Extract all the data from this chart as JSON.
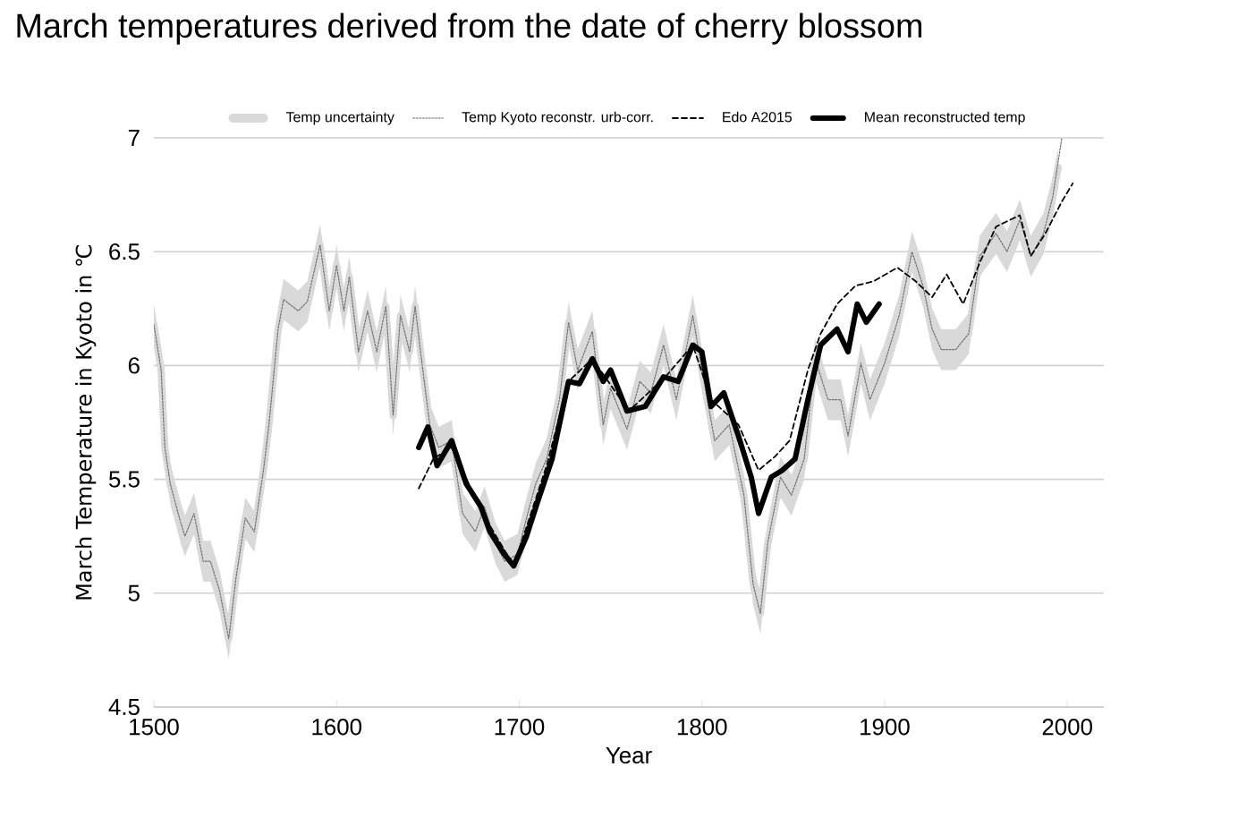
{
  "chart_data": {
    "type": "line",
    "title": "March temperatures derived from the date of cherry blossom",
    "xlabel": "Year",
    "ylabel": "March Temperature in Kyoto in ℃",
    "xlim": [
      1500,
      2020
    ],
    "xticks": [
      1500,
      1600,
      1700,
      1800,
      1900,
      2000
    ],
    "ylim": [
      4.5,
      7
    ],
    "yticks": [
      4.5,
      5,
      5.5,
      6,
      6.5,
      7
    ],
    "grid": "y",
    "legend": "top",
    "marker": "none",
    "series": [
      {
        "name": "Temp uncertainty",
        "color": "#d9d9d9",
        "line_style": "solid",
        "values": [
          6.18,
          5.98,
          5.64,
          5.48,
          5.33,
          5.25,
          5.35,
          5.14,
          5.14,
          5.01,
          4.8,
          5.07,
          5.33,
          5.27,
          5.54,
          5.74,
          6.16,
          6.29,
          6.24,
          6.28,
          6.53,
          6.24,
          6.44,
          6.24,
          6.39,
          6.06,
          6.24,
          6.06,
          6.26,
          5.78,
          6.22,
          6.06,
          6.26,
          6.06,
          5.74,
          5.64,
          5.67,
          5.35,
          5.27,
          5.38,
          5.22,
          5.14,
          5.17,
          5.33,
          5.48,
          5.59,
          5.85,
          6.19,
          5.98,
          6.15,
          5.74,
          5.9,
          5.72,
          5.93,
          5.88,
          6.09,
          5.85,
          6.22,
          5.98,
          5.67,
          5.74,
          5.43,
          5.04,
          4.91,
          5.22,
          5.51,
          5.43,
          5.59,
          6.03,
          5.85,
          5.85,
          5.69,
          6.01,
          5.85,
          6.01,
          6.22,
          6.5,
          6.35,
          6.16,
          6.07,
          6.07,
          6.14,
          6.48,
          6.58,
          6.5,
          6.64,
          6.48,
          6.58,
          6.74,
          6.87
        ],
        "x": [
          1500,
          1504,
          1506,
          1509,
          1514,
          1517,
          1522,
          1527,
          1531,
          1536,
          1541,
          1545,
          1550,
          1555,
          1560,
          1563,
          1568,
          1571,
          1579,
          1584,
          1591,
          1596,
          1600,
          1604,
          1607,
          1612,
          1617,
          1622,
          1627,
          1631,
          1635,
          1640,
          1643,
          1646,
          1651,
          1656,
          1663,
          1669,
          1676,
          1681,
          1687,
          1692,
          1699,
          1704,
          1709,
          1715,
          1722,
          1727,
          1732,
          1740,
          1746,
          1750,
          1759,
          1766,
          1772,
          1779,
          1786,
          1795,
          1800,
          1807,
          1815,
          1823,
          1828,
          1832,
          1836,
          1843,
          1849,
          1856,
          1862,
          1869,
          1876,
          1880,
          1887,
          1892,
          1900,
          1908,
          1915,
          1921,
          1926,
          1931,
          1939,
          1946,
          1952,
          1961,
          1967,
          1974,
          1980,
          1987,
          1992,
          1995
        ],
        "upper": [
          6.27,
          6.07,
          5.73,
          5.57,
          5.42,
          5.34,
          5.44,
          5.23,
          5.23,
          5.1,
          4.89,
          5.16,
          5.42,
          5.36,
          5.63,
          5.83,
          6.25,
          6.38,
          6.33,
          6.37,
          6.62,
          6.33,
          6.53,
          6.33,
          6.48,
          6.15,
          6.33,
          6.15,
          6.35,
          5.87,
          6.31,
          6.15,
          6.35,
          6.15,
          5.83,
          5.73,
          5.76,
          5.44,
          5.36,
          5.47,
          5.31,
          5.23,
          5.26,
          5.42,
          5.57,
          5.68,
          5.94,
          6.28,
          6.07,
          6.24,
          5.83,
          5.99,
          5.81,
          6.02,
          5.97,
          6.18,
          5.94,
          6.31,
          6.07,
          5.76,
          5.83,
          5.52,
          5.13,
          5.0,
          5.31,
          5.6,
          5.52,
          5.68,
          6.12,
          5.94,
          5.94,
          5.78,
          6.1,
          5.94,
          6.1,
          6.31,
          6.59,
          6.44,
          6.25,
          6.16,
          6.16,
          6.23,
          6.57,
          6.67,
          6.59,
          6.73,
          6.57,
          6.67,
          6.83,
          6.96
        ],
        "lower": [
          6.09,
          5.89,
          5.55,
          5.39,
          5.24,
          5.16,
          5.26,
          5.05,
          5.05,
          4.92,
          4.71,
          4.98,
          5.24,
          5.18,
          5.45,
          5.65,
          6.07,
          6.2,
          6.15,
          6.19,
          6.44,
          6.15,
          6.35,
          6.15,
          6.3,
          5.97,
          6.15,
          5.97,
          6.17,
          5.69,
          6.13,
          5.97,
          6.17,
          5.97,
          5.65,
          5.55,
          5.58,
          5.26,
          5.18,
          5.29,
          5.13,
          5.05,
          5.08,
          5.24,
          5.39,
          5.5,
          5.76,
          6.1,
          5.89,
          6.06,
          5.65,
          5.81,
          5.63,
          5.84,
          5.79,
          6.0,
          5.76,
          6.13,
          5.89,
          5.58,
          5.65,
          5.34,
          4.95,
          4.82,
          5.13,
          5.42,
          5.34,
          5.5,
          5.94,
          5.76,
          5.76,
          5.6,
          5.92,
          5.76,
          5.92,
          6.13,
          6.41,
          6.26,
          6.07,
          5.98,
          5.98,
          6.05,
          6.39,
          6.49,
          6.41,
          6.55,
          6.39,
          6.49,
          6.65,
          6.78
        ]
      },
      {
        "name": "Temp Kyoto reconstr. urb-corr.",
        "color": "#707070",
        "line_style": "dotted",
        "x": [
          1500,
          1504,
          1506,
          1509,
          1514,
          1517,
          1522,
          1527,
          1531,
          1536,
          1541,
          1545,
          1550,
          1555,
          1560,
          1563,
          1568,
          1571,
          1579,
          1584,
          1591,
          1596,
          1600,
          1604,
          1607,
          1612,
          1617,
          1622,
          1627,
          1631,
          1635,
          1640,
          1643,
          1646,
          1651,
          1656,
          1663,
          1669,
          1676,
          1681,
          1687,
          1692,
          1699,
          1704,
          1709,
          1715,
          1722,
          1727,
          1732,
          1740,
          1746,
          1750,
          1759,
          1766,
          1772,
          1779,
          1786,
          1795,
          1800,
          1807,
          1815,
          1823,
          1828,
          1832,
          1836,
          1843,
          1849,
          1856,
          1862,
          1869,
          1876,
          1880,
          1887,
          1892,
          1900,
          1908,
          1915,
          1921,
          1926,
          1931,
          1939,
          1946,
          1952,
          1961,
          1967,
          1974,
          1980,
          1987,
          1992,
          1997
        ],
        "values": [
          6.18,
          5.98,
          5.64,
          5.48,
          5.33,
          5.25,
          5.35,
          5.14,
          5.14,
          5.01,
          4.8,
          5.07,
          5.33,
          5.27,
          5.54,
          5.74,
          6.16,
          6.29,
          6.24,
          6.28,
          6.53,
          6.24,
          6.44,
          6.24,
          6.39,
          6.06,
          6.24,
          6.06,
          6.26,
          5.78,
          6.22,
          6.06,
          6.26,
          6.06,
          5.74,
          5.64,
          5.67,
          5.35,
          5.27,
          5.38,
          5.22,
          5.14,
          5.17,
          5.33,
          5.48,
          5.59,
          5.85,
          6.19,
          5.98,
          6.15,
          5.74,
          5.9,
          5.72,
          5.93,
          5.88,
          6.09,
          5.85,
          6.22,
          5.98,
          5.67,
          5.74,
          5.43,
          5.04,
          4.91,
          5.22,
          5.51,
          5.43,
          5.59,
          6.03,
          5.85,
          5.85,
          5.69,
          6.01,
          5.85,
          6.01,
          6.22,
          6.5,
          6.35,
          6.16,
          6.07,
          6.07,
          6.14,
          6.48,
          6.58,
          6.5,
          6.64,
          6.48,
          6.58,
          6.74,
          7.0
        ]
      },
      {
        "name": "Edo A2015",
        "color": "#000000",
        "line_style": "dashed",
        "x": [
          1645,
          1653,
          1663,
          1680,
          1697,
          1715,
          1727,
          1740,
          1760,
          1780,
          1795,
          1805,
          1820,
          1831,
          1840,
          1848,
          1858,
          1865,
          1874,
          1884,
          1894,
          1907,
          1917,
          1926,
          1934,
          1943,
          1952,
          1961,
          1974,
          1980,
          1988,
          1997,
          2003
        ],
        "values": [
          5.46,
          5.59,
          5.64,
          5.35,
          5.12,
          5.56,
          5.93,
          6.03,
          5.8,
          5.95,
          6.09,
          5.85,
          5.74,
          5.54,
          5.6,
          5.67,
          5.98,
          6.14,
          6.27,
          6.35,
          6.37,
          6.43,
          6.37,
          6.3,
          6.4,
          6.27,
          6.45,
          6.61,
          6.66,
          6.48,
          6.58,
          6.72,
          6.8
        ]
      },
      {
        "name": "Mean reconstructed temp",
        "color": "#000000",
        "line_style": "solid",
        "x": [
          1645,
          1650,
          1655,
          1663,
          1671,
          1679,
          1684,
          1691,
          1697,
          1704,
          1710,
          1718,
          1727,
          1733,
          1740,
          1746,
          1750,
          1759,
          1769,
          1779,
          1787,
          1795,
          1800,
          1805,
          1812,
          1820,
          1827,
          1831,
          1838,
          1844,
          1851,
          1858,
          1865,
          1874,
          1880,
          1885,
          1890,
          1897
        ],
        "values": [
          5.64,
          5.73,
          5.56,
          5.67,
          5.48,
          5.38,
          5.27,
          5.18,
          5.12,
          5.25,
          5.4,
          5.59,
          5.93,
          5.92,
          6.03,
          5.93,
          5.98,
          5.8,
          5.82,
          5.95,
          5.93,
          6.09,
          6.06,
          5.82,
          5.88,
          5.69,
          5.51,
          5.35,
          5.51,
          5.54,
          5.59,
          5.85,
          6.09,
          6.16,
          6.06,
          6.27,
          6.19,
          6.27
        ]
      }
    ]
  }
}
